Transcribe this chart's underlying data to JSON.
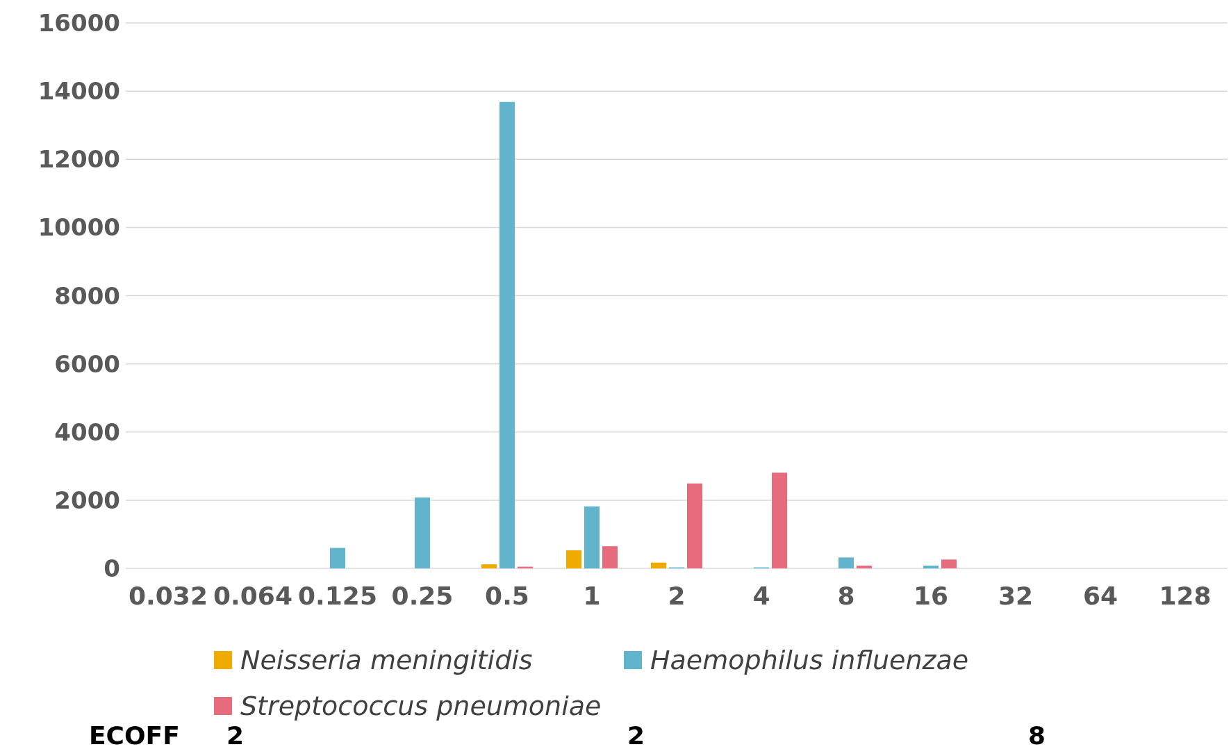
{
  "chart_data": {
    "type": "bar",
    "categories": [
      "0.032",
      "0.064",
      "0.125",
      "0.25",
      "0.5",
      "1",
      "2",
      "4",
      "8",
      "16",
      "32",
      "64",
      "128"
    ],
    "series": [
      {
        "name": "Neisseria meningitidis",
        "color": "#f0ab00",
        "values": [
          0,
          0,
          0,
          0,
          120,
          530,
          170,
          0,
          0,
          0,
          0,
          0,
          0
        ]
      },
      {
        "name": "Haemophilus influenzae",
        "color": "#61b4cc",
        "values": [
          0,
          0,
          600,
          2080,
          13680,
          1820,
          30,
          30,
          320,
          80,
          0,
          0,
          0
        ]
      },
      {
        "name": "Streptococcus pneumoniae",
        "color": "#e66c7d",
        "values": [
          0,
          0,
          0,
          0,
          50,
          650,
          2490,
          2810,
          80,
          260,
          0,
          0,
          0
        ]
      }
    ],
    "ylim": [
      0,
      16000
    ],
    "yticks": [
      0,
      2000,
      4000,
      6000,
      8000,
      10000,
      12000,
      14000,
      16000
    ],
    "grid": "y",
    "legend": "bottom",
    "annotations": [
      "ECOFF",
      "2",
      "2",
      "8"
    ]
  }
}
